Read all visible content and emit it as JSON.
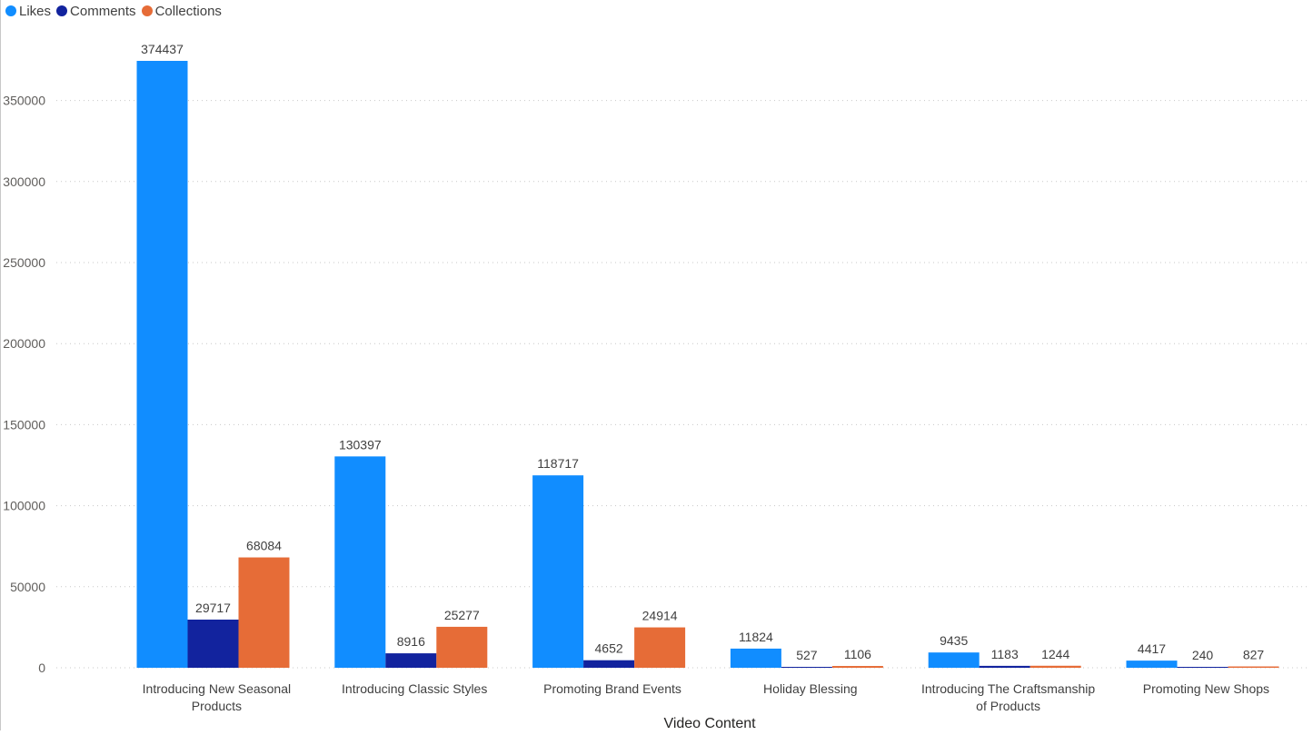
{
  "chart_data": {
    "type": "bar",
    "xlabel": "Video Content",
    "ylabel": "",
    "ylim": [
      0,
      375000
    ],
    "yticks": [
      0,
      50000,
      100000,
      150000,
      200000,
      250000,
      300000,
      350000
    ],
    "grid": "horizontal dotted",
    "legend_position": "top-left",
    "categories": [
      [
        "Introducing New Seasonal",
        "Products"
      ],
      [
        "Introducing Classic Styles"
      ],
      [
        "Promoting Brand Events"
      ],
      [
        "Holiday Blessing"
      ],
      [
        "Introducing The Craftsmanship",
        "of Products"
      ],
      [
        "Promoting New Shops"
      ]
    ],
    "series": [
      {
        "name": "Likes",
        "color": "#118dff",
        "values": [
          374437,
          130397,
          118717,
          11824,
          9435,
          4417
        ]
      },
      {
        "name": "Comments",
        "color": "#12239e",
        "values": [
          29717,
          8916,
          4652,
          527,
          1183,
          240
        ]
      },
      {
        "name": "Collections",
        "color": "#e66c37",
        "values": [
          68084,
          25277,
          24914,
          1106,
          1244,
          827
        ]
      }
    ]
  }
}
